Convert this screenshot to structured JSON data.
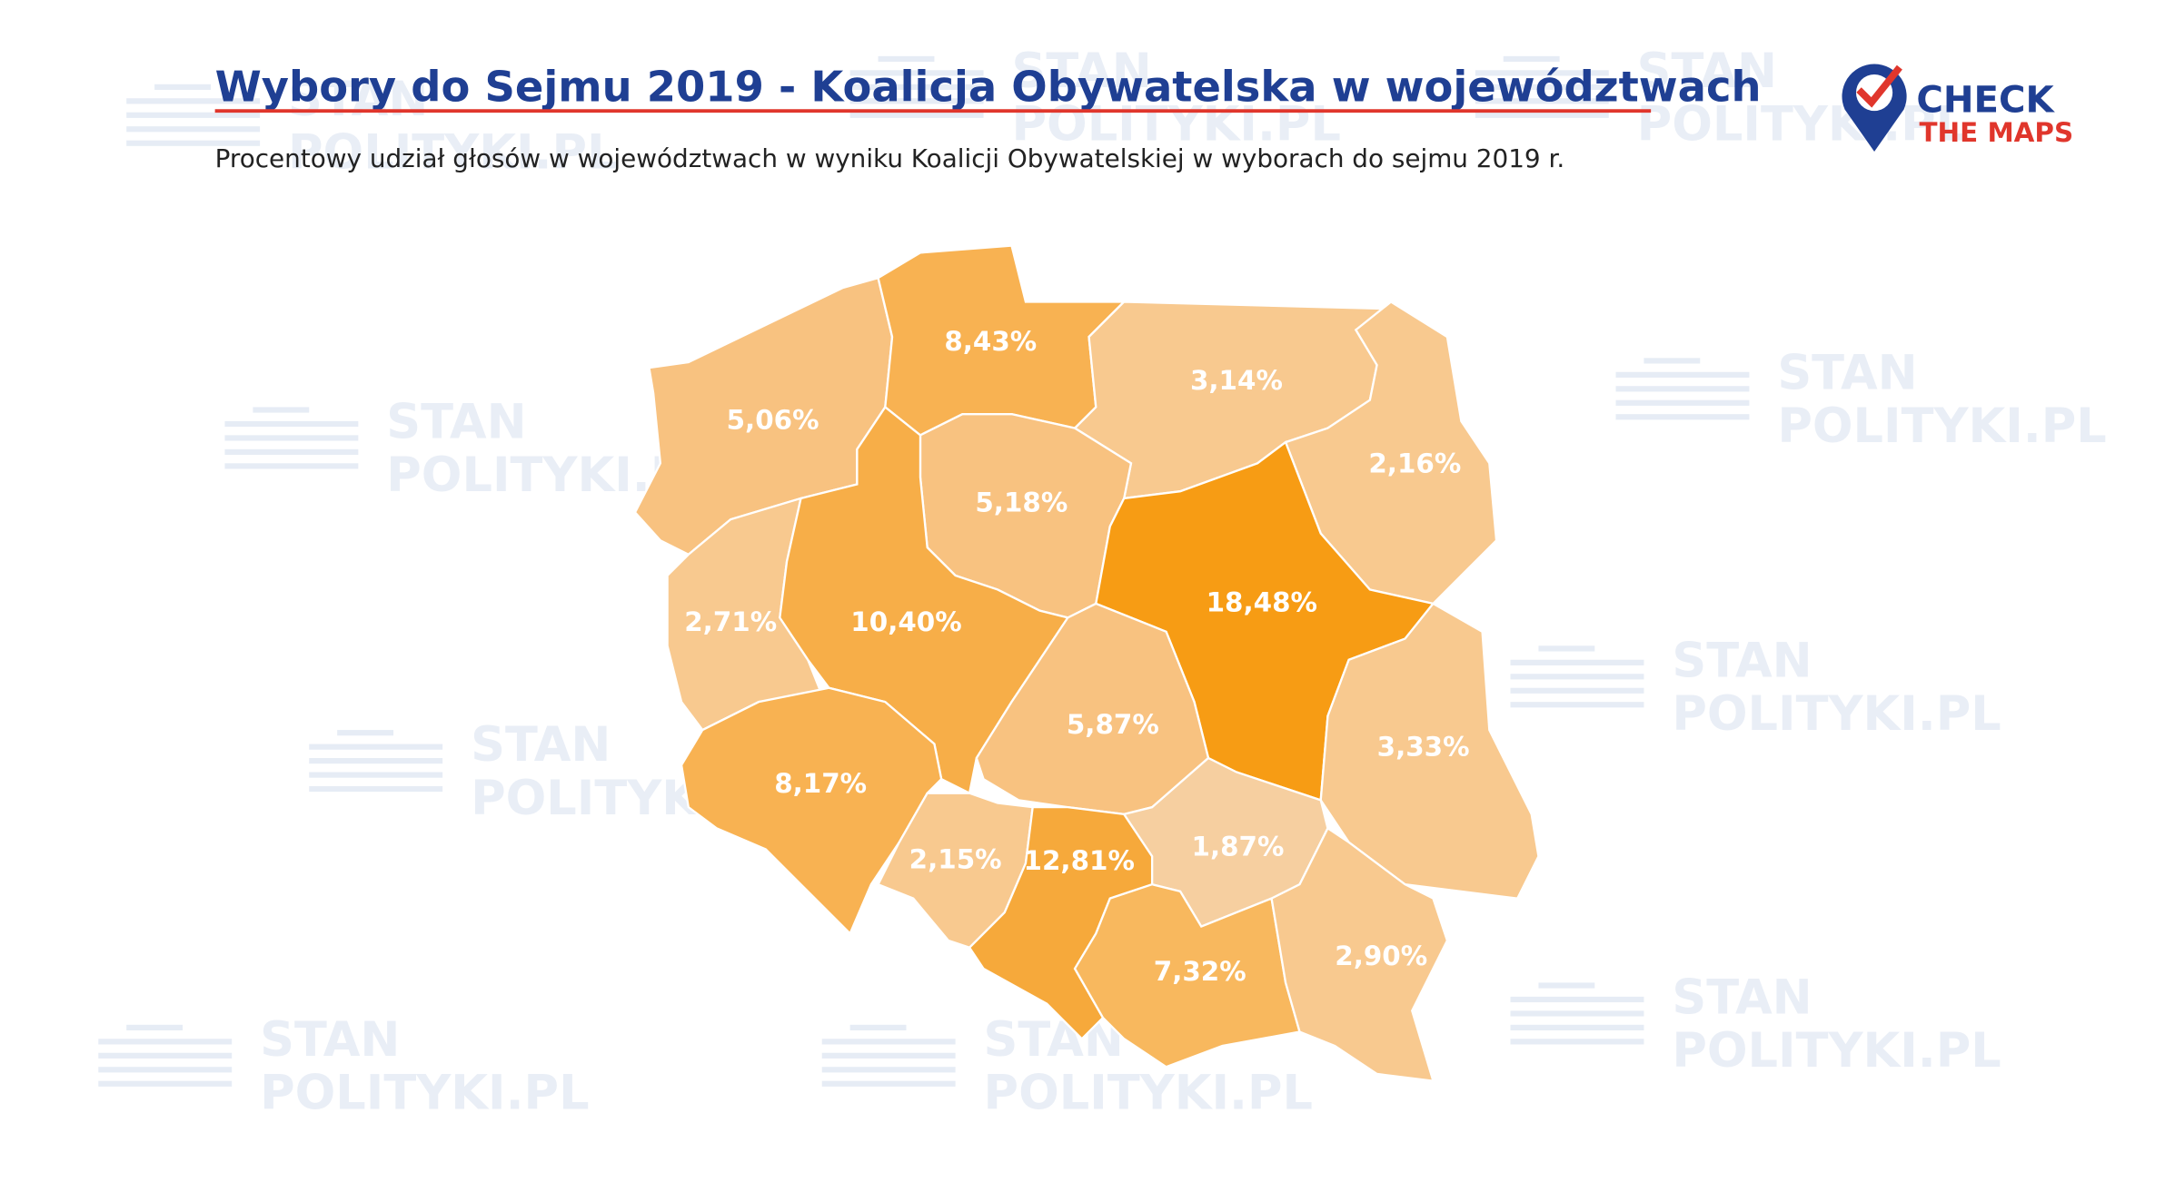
{
  "header": {
    "title": "Wybory do Sejmu 2019 - Koalicja Obywatelska w województwach",
    "subtitle": "Procentowy udział głosów w województwach w wyniku Koalicji Obywatelskiej w wyborach do sejmu 2019 r."
  },
  "logo": {
    "line1": "CHECK",
    "line2": "THE MAPS"
  },
  "watermark": {
    "line1": "STAN",
    "line2": "POLITYKI.PL"
  },
  "regions": [
    {
      "value": 5.06,
      "label": "5,06%",
      "color": "#f8c280"
    },
    {
      "value": 8.43,
      "label": "8,43%",
      "color": "#f8b252"
    },
    {
      "value": 3.14,
      "label": "3,14%",
      "color": "#f8c98f"
    },
    {
      "value": 2.16,
      "label": "2,16%",
      "color": "#f8c98f"
    },
    {
      "value": 5.18,
      "label": "5,18%",
      "color": "#f8c280"
    },
    {
      "value": 18.48,
      "label": "18,48%",
      "color": "#f79c14"
    },
    {
      "value": 2.71,
      "label": "2,71%",
      "color": "#f8c98f"
    },
    {
      "value": 10.4,
      "label": "10,40%",
      "color": "#f7ae48"
    },
    {
      "value": 5.87,
      "label": "5,87%",
      "color": "#f8c280"
    },
    {
      "value": 3.33,
      "label": "3,33%",
      "color": "#f8c98f"
    },
    {
      "value": 8.17,
      "label": "8,17%",
      "color": "#f8b252"
    },
    {
      "value": 2.15,
      "label": "2,15%",
      "color": "#f8c98f"
    },
    {
      "value": 12.81,
      "label": "12,81%",
      "color": "#f6a93b"
    },
    {
      "value": 1.87,
      "label": "1,87%",
      "color": "#f6cfa0"
    },
    {
      "value": 7.32,
      "label": "7,32%",
      "color": "#f8b85e"
    },
    {
      "value": 2.9,
      "label": "2,90%",
      "color": "#f8c98f"
    }
  ]
}
